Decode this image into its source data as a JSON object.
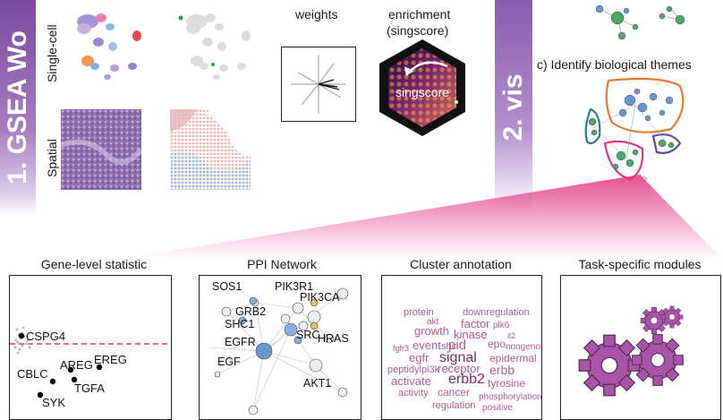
{
  "banners": {
    "left": "1. GSEA Wo",
    "right": "2. vis"
  },
  "row_labels": {
    "single_cell": "Single-cell",
    "spatial": "Spatial"
  },
  "steps": {
    "weights": "weights",
    "enrichment_line1": "enrichment",
    "enrichment_line2": "(singscore)",
    "singscore": "singscore",
    "themes": "c) Identify biological themes"
  },
  "panels": {
    "gene_level": {
      "title": "Gene-level statistic",
      "genes": [
        "CSPG4",
        "AREG",
        "EREG",
        "CBLC",
        "TGFA",
        "SYK"
      ]
    },
    "ppi": {
      "title": "PPI Network",
      "genes": [
        "SOS1",
        "PIK3R1",
        "PIK3CA",
        "GRB2",
        "SHC1",
        "SRC",
        "EGFR",
        "HRAS",
        "EGF",
        "AKT1"
      ]
    },
    "cluster": {
      "title": "Cluster annotation",
      "words": [
        "protein",
        "downregulation",
        "akt",
        "factor",
        "plk6",
        "kinase",
        "epo",
        "growth",
        "shc",
        "event",
        "pid",
        "fgfr3",
        "il2",
        "egfr",
        "signal",
        "epidermal",
        "erbb",
        "nongenomic",
        "peptidyl",
        "pi3k",
        "receptor",
        "erbb2",
        "tyrosine",
        "phosphorylation",
        "activate",
        "cancer",
        "positive",
        "activity",
        "regulation"
      ]
    },
    "modules": {
      "title": "Task-specific modules"
    }
  },
  "colors": {
    "banner_purple": "#a67dc0",
    "accent_pink": "#e0317c",
    "wordcloud": "#b05b94",
    "gear_fill": "#a855a8"
  }
}
